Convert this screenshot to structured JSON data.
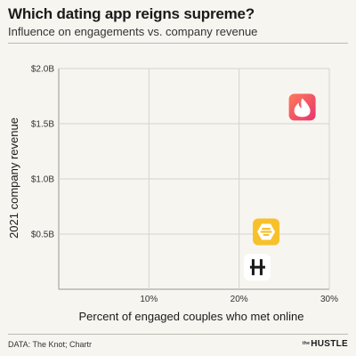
{
  "title": "Which dating app reigns supreme?",
  "subtitle": "Influence on engagements vs. company revenue",
  "source": "DATA: The Knot; Chartr",
  "brand": {
    "prefix": "the",
    "name": "HUSTLE"
  },
  "chart_data": {
    "type": "scatter",
    "xlabel": "Percent of engaged couples who met online",
    "ylabel": "2021 company revenue",
    "xlim": [
      0,
      30
    ],
    "ylim": [
      0,
      2.0
    ],
    "x_ticks": [
      {
        "value": 10,
        "label": "10%"
      },
      {
        "value": 20,
        "label": "20%"
      },
      {
        "value": 30,
        "label": "30%"
      }
    ],
    "y_ticks": [
      {
        "value": 0.5,
        "label": "$0.5B"
      },
      {
        "value": 1.0,
        "label": "$1.0B"
      },
      {
        "value": 1.5,
        "label": "$1.5B"
      },
      {
        "value": 2.0,
        "label": "$2.0B"
      }
    ],
    "grid": true,
    "points": [
      {
        "icon": "tinder-flame-icon",
        "x": 27,
        "y": 1.65,
        "color": "#f0506e"
      },
      {
        "icon": "bumble-hive-icon",
        "x": 23,
        "y": 0.52,
        "color": "#f7c12b"
      },
      {
        "icon": "hinge-h-icon",
        "x": 22,
        "y": 0.2,
        "color": "#1a1a1a"
      }
    ]
  }
}
